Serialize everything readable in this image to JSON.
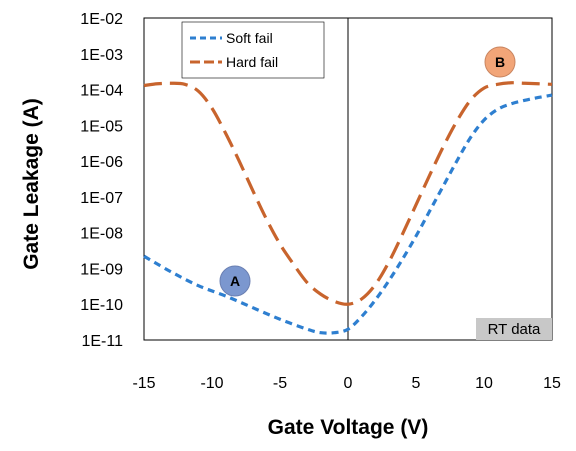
{
  "chart_data": {
    "type": "line",
    "xlabel": "Gate Voltage (V)",
    "ylabel": "Gate Leakage (A)",
    "x_scale": "linear",
    "y_scale": "log",
    "xlim": [
      -15,
      15
    ],
    "ylim": [
      1e-11,
      0.01
    ],
    "x_ticks": [
      "-15",
      "-10",
      "-5",
      "0",
      "5",
      "10",
      "15"
    ],
    "y_ticks": [
      "1E-11",
      "1E-10",
      "1E-09",
      "1E-08",
      "1E-07",
      "1E-06",
      "1E-05",
      "1E-04",
      "1E-03",
      "1E-02"
    ],
    "grid": false,
    "legend_position": "top-left",
    "series": [
      {
        "name": "Soft fail",
        "color": "#2e7fd0",
        "style": "short-dash",
        "x": [
          -15,
          -13,
          -11,
          -9,
          -7,
          -5,
          -3,
          -2,
          -1,
          0,
          1,
          2,
          3,
          4,
          5,
          6,
          7,
          8,
          9,
          10,
          11,
          12,
          13,
          14,
          15
        ],
        "y": [
          2.2e-09,
          8e-10,
          3.3e-10,
          1.7e-10,
          8e-11,
          3.8e-11,
          2e-11,
          1.6e-11,
          1.6e-11,
          2e-11,
          4.5e-11,
          1.3e-10,
          4.5e-10,
          1.8e-09,
          8e-09,
          4e-08,
          2e-07,
          1e-06,
          4.5e-06,
          1.4e-05,
          2.8e-05,
          4e-05,
          5e-05,
          6e-05,
          7e-05
        ]
      },
      {
        "name": "Hard fail",
        "color": "#c8642d",
        "style": "long-dash",
        "x": [
          -15,
          -14,
          -13,
          -12,
          -11,
          -10,
          -9,
          -8,
          -7,
          -6,
          -5,
          -4,
          -3,
          -2,
          -1,
          0,
          1,
          2,
          3,
          4,
          5,
          6,
          7,
          8,
          9,
          10,
          11,
          12,
          13,
          14,
          15
        ],
        "y": [
          0.00013,
          0.000145,
          0.00015,
          0.00014,
          9e-05,
          3e-05,
          6e-06,
          1e-06,
          1.5e-07,
          2.4e-08,
          4.8e-09,
          1.3e-09,
          4e-10,
          1.9e-10,
          1.2e-10,
          1e-10,
          1.4e-10,
          3.5e-10,
          1.5e-09,
          9e-09,
          6e-08,
          4e-07,
          2.5e-06,
          1.3e-05,
          5e-05,
          0.00011,
          0.00014,
          0.000155,
          0.00015,
          0.000145,
          0.00014
        ]
      }
    ],
    "annotations": [
      {
        "label": "A",
        "color": "#7b97cf"
      },
      {
        "label": "B",
        "color": "#f2a578"
      },
      {
        "label": "RT data",
        "color": "#c8c8c8"
      }
    ]
  }
}
